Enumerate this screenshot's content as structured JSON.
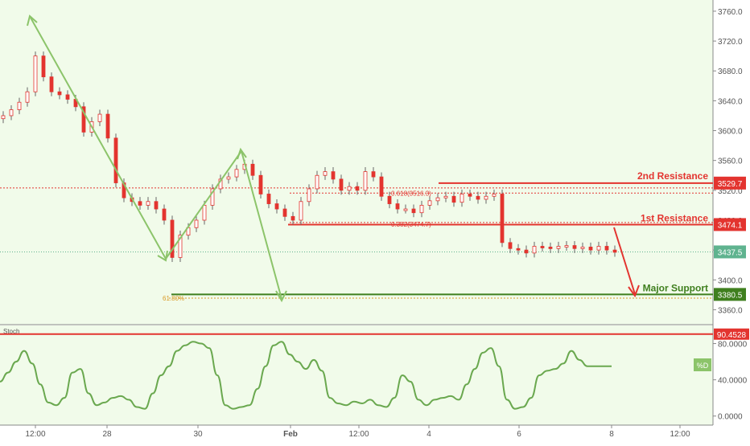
{
  "colors": {
    "background": "#f1fbea",
    "panel_bg": "#ffffff",
    "candle": "#e3342f",
    "candle_wick": "#666666",
    "resistance": "#e3342f",
    "support": "#3f7f1e",
    "fib": "#d99a25",
    "arrow_green": "#8cc46a",
    "arrow_red": "#e3342f",
    "stoch_line": "#6aa84f",
    "current_price": "#5fb38f"
  },
  "price_axis": {
    "ylim": [
      3340,
      3775
    ],
    "ticks": [
      "3760.0",
      "3720.0",
      "3680.0",
      "3640.0",
      "3600.0",
      "3560.0",
      "3520.0",
      "3480.0",
      "3440.0",
      "3400.0",
      "3360.0"
    ]
  },
  "time_axis": {
    "labels": [
      "12:00",
      "28",
      "30",
      "Feb",
      "12:00",
      "4",
      "6",
      "8",
      "12:00"
    ]
  },
  "annotations": {
    "second_resistance": {
      "label": "2nd Resistance",
      "price_label": "3529.7",
      "price": 3529.7
    },
    "first_resistance": {
      "label": "1st Resistance",
      "price_label": "3474.1",
      "price": 3474.1
    },
    "major_support": {
      "label": "Major Support",
      "price_label": "3380.5",
      "price": 3380.5
    },
    "current_price": {
      "price_label": "3437.5",
      "price": 3437.5
    },
    "fib_618": {
      "label": "0.618(3516.3)",
      "price": 3516.3
    },
    "fib_382": {
      "label": "0.382(3474.7)",
      "price": 3474.7
    },
    "fib_support": {
      "label": "61.80%",
      "price": 3375.5
    }
  },
  "stoch": {
    "title": "Stoch",
    "ylim": [
      -10,
      100
    ],
    "ticks": [
      "80.0000",
      "40.0000",
      "0.0000"
    ],
    "level": {
      "price_label": "90.4528",
      "value": 90.4528
    },
    "series_label": "%D"
  },
  "chart_data": {
    "type": "line",
    "title": "",
    "xlabel": "",
    "ylabel": "",
    "grid": false,
    "series": [
      {
        "name": "",
        "x_index": [
          0,
          10,
          20,
          30,
          40,
          50,
          60,
          70,
          80,
          90,
          100,
          110,
          120,
          130,
          140,
          150,
          160,
          170,
          180,
          190,
          200,
          210,
          220,
          230,
          240,
          250,
          260,
          270,
          280,
          290,
          300,
          310,
          320,
          330,
          340,
          350,
          360,
          370,
          380,
          390,
          400,
          410,
          420,
          430,
          440,
          450,
          460,
          470,
          480,
          490,
          500,
          510,
          520,
          530,
          540,
          550,
          560,
          570,
          580,
          590,
          600,
          610,
          620,
          630,
          640,
          650,
          660,
          670,
          680,
          690,
          700,
          710,
          720,
          730,
          740,
          750,
          760
        ],
        "values": [
          3620,
          3628,
          3638,
          3652,
          3700,
          3672,
          3652,
          3648,
          3642,
          3632,
          3598,
          3612,
          3622,
          3590,
          3530,
          3510,
          3505,
          3500,
          3505,
          3495,
          3480,
          3430,
          3460,
          3470,
          3480,
          3500,
          3522,
          3535,
          3538,
          3548,
          3555,
          3540,
          3515,
          3502,
          3495,
          3485,
          3480,
          3505,
          3522,
          3540,
          3545,
          3535,
          3520,
          3525,
          3520,
          3545,
          3538,
          3512,
          3502,
          3495,
          3495,
          3490,
          3500,
          3506,
          3510,
          3512,
          3504,
          3515,
          3512,
          3508,
          3512,
          3515,
          3450,
          3442,
          3440,
          3436,
          3445,
          3444,
          3442,
          3445,
          3446,
          3442,
          3444,
          3440,
          3445,
          3440,
          3437
        ]
      }
    ],
    "stoch_series": {
      "name": "%D",
      "x_index": [
        0,
        10,
        20,
        30,
        40,
        50,
        60,
        70,
        80,
        90,
        100,
        110,
        120,
        130,
        140,
        150,
        160,
        170,
        180,
        190,
        200,
        210,
        220,
        230,
        240,
        250,
        260,
        270,
        280,
        290,
        300,
        310,
        320,
        330,
        340,
        350,
        360,
        370,
        380,
        390,
        400,
        410,
        420,
        430,
        440,
        450,
        460,
        470,
        480,
        490,
        500,
        510,
        520,
        530,
        540,
        550,
        560,
        570,
        580,
        590,
        600,
        610,
        620,
        630,
        640,
        650,
        660,
        670,
        680,
        690,
        700,
        710,
        720,
        730,
        740,
        750,
        760
      ],
      "values": [
        38,
        48,
        60,
        72,
        58,
        35,
        15,
        12,
        20,
        48,
        52,
        25,
        12,
        15,
        20,
        22,
        18,
        10,
        8,
        25,
        45,
        55,
        72,
        78,
        82,
        80,
        75,
        45,
        12,
        8,
        10,
        12,
        30,
        55,
        78,
        82,
        68,
        60,
        52,
        62,
        50,
        20,
        14,
        12,
        16,
        14,
        18,
        12,
        10,
        20,
        45,
        38,
        18,
        12,
        18,
        20,
        22,
        18,
        35,
        52,
        70,
        75,
        55,
        18,
        8,
        10,
        20,
        45,
        50,
        52,
        58,
        72,
        62,
        55,
        55,
        55,
        55
      ]
    }
  }
}
